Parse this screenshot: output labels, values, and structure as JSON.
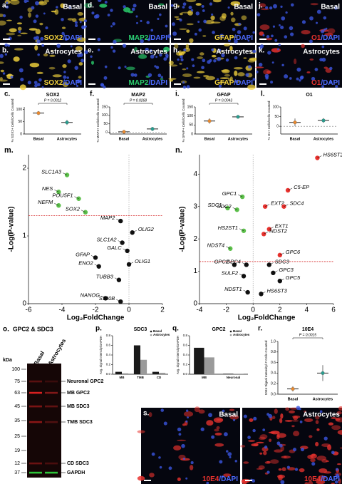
{
  "images": [
    {
      "label": "a.",
      "condition": "Basal",
      "stain": "SOX2",
      "counterstain": "/DAPI",
      "stain_color": "#f2d23c"
    },
    {
      "label": "d.",
      "condition": "Basal",
      "stain": "MAP2",
      "counterstain": "/DAPI",
      "stain_color": "#2bd16e"
    },
    {
      "label": "g.",
      "condition": "Basal",
      "stain": "GFAP",
      "counterstain": "/DAPI",
      "stain_color": "#f2d23c"
    },
    {
      "label": "j.",
      "condition": "Basal",
      "stain": "O1",
      "counterstain": "/DAPI",
      "stain_color": "#e8322e"
    },
    {
      "label": "b.",
      "condition": "Astrocytes",
      "stain": "SOX2",
      "counterstain": "/DAPI",
      "stain_color": "#f2d23c"
    },
    {
      "label": "e.",
      "condition": "Astrocytes",
      "stain": "MAP2",
      "counterstain": "/DAPI",
      "stain_color": "#2bd16e"
    },
    {
      "label": "h.",
      "condition": "Astrocytes",
      "stain": "GFAP",
      "counterstain": "/DAPI",
      "stain_color": "#f2d23c"
    },
    {
      "label": "k.",
      "condition": "Astrocytes",
      "stain": "O1",
      "counterstain": "/DAPI",
      "stain_color": "#e8322e"
    },
    {
      "label": "s.",
      "condition": "Basal",
      "stain": "10E4",
      "counterstain": "/DAPI",
      "stain_color": "#e8322e"
    },
    {
      "condition": "Astrocytes",
      "stain": "10E4",
      "counterstain": "/DAPI",
      "stain_color": "#e8322e"
    }
  ],
  "blot": {
    "label": "o.",
    "title": "GPC2 & SDC3",
    "lanes": [
      "Basal",
      "Astrocytes"
    ],
    "unit": "kDa",
    "ladder": [
      100,
      75,
      63,
      45,
      35,
      25,
      19,
      12,
      37
    ],
    "bands": [
      "Neuronal GPC2",
      "MB GPC2",
      "MB SDC3",
      "TMB SDC3",
      "CD SDC3",
      "GAPDH"
    ]
  },
  "chart_data": [
    {
      "type": "dot",
      "label": "c.",
      "title": "SOX2",
      "ylabel": "% SOX2+ Cells/Cells Counted",
      "categories": [
        "Basal",
        "Astrocytes"
      ],
      "values": [
        85,
        47
      ],
      "errors": [
        8,
        10
      ],
      "colors": [
        "#e8892f",
        "#2a9d8f"
      ],
      "ylim": [
        0,
        110
      ],
      "yticks": [
        0,
        50,
        100
      ],
      "pvalue": "P = 0.0012",
      "zero_line": false
    },
    {
      "type": "dot",
      "label": "f.",
      "title": "MAP2",
      "ylabel": "% MAP2+ Cells/Cells Counted",
      "categories": [
        "Basal",
        "Astrocytes"
      ],
      "values": [
        3,
        20
      ],
      "errors": [
        2,
        12
      ],
      "colors": [
        "#e8892f",
        "#2a9d8f"
      ],
      "ylim": [
        -10,
        150
      ],
      "yticks": [
        0,
        50,
        100,
        150
      ],
      "pvalue": "P = 0.0268",
      "zero_line": true
    },
    {
      "type": "dot",
      "label": "i.",
      "title": "GFAP",
      "ylabel": "% GFAP+ Cells/Cells Counted",
      "categories": [
        "Basal",
        "Astrocytes"
      ],
      "values": [
        72,
        95
      ],
      "errors": [
        15,
        5
      ],
      "colors": [
        "#e8892f",
        "#2a9d8f"
      ],
      "ylim": [
        0,
        150
      ],
      "yticks": [
        0,
        50,
        100,
        150
      ],
      "pvalue": "P = 0.0043",
      "zero_line": false
    },
    {
      "type": "dot",
      "label": "l.",
      "title": "O1",
      "ylabel": "% O1+ Cells/Cells Counted",
      "categories": [
        "Basal",
        "Astrocytes"
      ],
      "values": [
        20,
        30
      ],
      "errors": [
        20,
        12
      ],
      "colors": [
        "#e8892f",
        "#2a9d8f"
      ],
      "ylim": [
        -40,
        100
      ],
      "yticks": [
        0,
        50,
        100
      ],
      "zero_line": true
    },
    {
      "type": "volcano",
      "label": "m.",
      "xlabel": "Log₂FoldChange",
      "ylabel": "-Log(P-value)",
      "xlim": [
        -6,
        2
      ],
      "xticks": [
        -6,
        -4,
        -2,
        0,
        2
      ],
      "ylim": [
        0,
        2.2
      ],
      "yticks": [
        0,
        1,
        2
      ],
      "threshold": 1.3,
      "points": [
        {
          "name": "SLC1A3",
          "x": -3.7,
          "y": 1.9,
          "color": "#5cbf4a"
        },
        {
          "name": "NES",
          "x": -4.2,
          "y": 1.65,
          "color": "#5cbf4a"
        },
        {
          "name": "POU5F1",
          "x": -3.0,
          "y": 1.55,
          "color": "#5cbf4a"
        },
        {
          "name": "NEFM",
          "x": -4.2,
          "y": 1.45,
          "color": "#5cbf4a"
        },
        {
          "name": "SOX2",
          "x": -2.6,
          "y": 1.35,
          "color": "#5cbf4a"
        },
        {
          "name": "MAP2",
          "x": -0.5,
          "y": 1.22,
          "color": "#111111"
        },
        {
          "name": "OLIG2",
          "x": 0.2,
          "y": 1.05,
          "color": "#111111"
        },
        {
          "name": "SLC1A2",
          "x": -0.4,
          "y": 0.9,
          "color": "#111111"
        },
        {
          "name": "GALC",
          "x": -0.1,
          "y": 0.78,
          "color": "#111111"
        },
        {
          "name": "GFAP",
          "x": -2.0,
          "y": 0.68,
          "color": "#111111"
        },
        {
          "name": "ENO2",
          "x": -1.8,
          "y": 0.55,
          "color": "#111111"
        },
        {
          "name": "OLIG1",
          "x": 0.0,
          "y": 0.58,
          "color": "#111111"
        },
        {
          "name": "TUBB3",
          "x": -0.6,
          "y": 0.35,
          "color": "#111111"
        },
        {
          "name": "NANOG",
          "x": -1.4,
          "y": 0.08,
          "color": "#111111"
        },
        {
          "name": "S100B",
          "x": -0.5,
          "y": 0.03,
          "color": "#111111"
        }
      ]
    },
    {
      "type": "volcano",
      "label": "n.",
      "xlabel": "Log₂FoldChange",
      "ylabel": "-Log(P-value)",
      "xlim": [
        -4,
        6
      ],
      "xticks": [
        -4,
        -2,
        0,
        2,
        4,
        6
      ],
      "ylim": [
        0,
        4.6
      ],
      "yticks": [
        0,
        1,
        2,
        3,
        4
      ],
      "threshold": 1.3,
      "points": [
        {
          "name": "HS6ST2",
          "x": 4.8,
          "y": 4.5,
          "color": "#e8322e"
        },
        {
          "name": "C5-EP",
          "x": 2.6,
          "y": 3.5,
          "color": "#e8322e"
        },
        {
          "name": "GPC1",
          "x": -0.8,
          "y": 3.3,
          "color": "#5cbf4a"
        },
        {
          "name": "SDC1",
          "x": -1.9,
          "y": 2.95,
          "color": "#5cbf4a"
        },
        {
          "name": "SDC2",
          "x": -1.2,
          "y": 2.9,
          "color": "#5cbf4a"
        },
        {
          "name": "EXT2",
          "x": 0.9,
          "y": 3.0,
          "color": "#e8322e"
        },
        {
          "name": "SDC4",
          "x": 2.3,
          "y": 3.0,
          "color": "#e8322e"
        },
        {
          "name": "EXT1",
          "x": 1.2,
          "y": 2.3,
          "color": "#e8322e"
        },
        {
          "name": "HS2ST1",
          "x": -0.7,
          "y": 2.25,
          "color": "#5cbf4a"
        },
        {
          "name": "NDST2",
          "x": 0.8,
          "y": 2.15,
          "color": "#e8322e"
        },
        {
          "name": "NDST4",
          "x": -1.7,
          "y": 1.7,
          "color": "#5cbf4a"
        },
        {
          "name": "GPC6",
          "x": 2.0,
          "y": 1.5,
          "color": "#e8322e"
        },
        {
          "name": "GPC2",
          "x": -1.4,
          "y": 1.2,
          "color": "#111111"
        },
        {
          "name": "GPC4",
          "x": -0.5,
          "y": 1.2,
          "color": "#111111"
        },
        {
          "name": "SDC3",
          "x": 1.2,
          "y": 1.2,
          "color": "#111111"
        },
        {
          "name": "GPC3",
          "x": 1.5,
          "y": 0.95,
          "color": "#111111"
        },
        {
          "name": "SULF2",
          "x": -0.7,
          "y": 0.85,
          "color": "#111111"
        },
        {
          "name": "GPC5",
          "x": 2.0,
          "y": 0.7,
          "color": "#111111"
        },
        {
          "name": "NDST1",
          "x": -0.4,
          "y": 0.35,
          "color": "#111111"
        },
        {
          "name": "HS6ST3",
          "x": 0.6,
          "y": 0.3,
          "color": "#111111"
        }
      ]
    },
    {
      "type": "grouped_bar",
      "label": "p.",
      "title": "SDC3",
      "ylabel": "Avg. Signal Intensity/GAPDH",
      "categories": [
        "MB",
        "TMB",
        "CD"
      ],
      "series": [
        {
          "name": "Basal",
          "color": "#1a1a1a",
          "values": [
            0.05,
            0.6,
            0.05
          ]
        },
        {
          "name": "Astrocytes",
          "color": "#9a9a9a",
          "values": [
            0.02,
            0.3,
            0.03
          ]
        }
      ],
      "ylim": [
        0,
        0.8
      ],
      "yticks": [
        {
          "value": 0,
          "label": "0.0"
        },
        {
          "value": 0.2,
          "label": "0.2"
        },
        {
          "value": 0.4,
          "label": "0.4"
        },
        {
          "value": 0.6,
          "label": "0.6"
        },
        {
          "value": 0.8,
          "label": "0.8"
        }
      ]
    },
    {
      "type": "grouped_bar",
      "label": "q.",
      "title": "GPC2",
      "ylabel": "Avg. Signal Intensity/GAPDH",
      "categories": [
        "MB",
        "Neuronal"
      ],
      "series": [
        {
          "name": "Basal",
          "color": "#1a1a1a",
          "values": [
            0.55,
            0.01
          ]
        },
        {
          "name": "Astrocytes",
          "color": "#9a9a9a",
          "values": [
            0.35,
            0.01
          ]
        }
      ],
      "ylim": [
        0,
        0.8
      ],
      "yticks": [
        {
          "value": 0,
          "label": "0.0"
        },
        {
          "value": 0.2,
          "label": "0.2"
        },
        {
          "value": 0.4,
          "label": "0.4"
        },
        {
          "value": 0.6,
          "label": "0.6"
        },
        {
          "value": 0.8,
          "label": "0.8"
        }
      ]
    },
    {
      "type": "dot",
      "label": "r.",
      "title": "10E4",
      "ylabel": "10E4 Signal Intensity/ # Cells Counted",
      "categories": [
        "Basal",
        "Astrocytes"
      ],
      "values": [
        0.1,
        0.4
      ],
      "errors": [
        0.05,
        0.15
      ],
      "colors": [
        "#e8892f",
        "#2a9d8f"
      ],
      "ylim": [
        0,
        1.0
      ],
      "yticks": [
        {
          "value": 0,
          "label": "0.0"
        },
        {
          "value": 0.2,
          "label": "0.2"
        },
        {
          "value": 0.4,
          "label": "0.4"
        },
        {
          "value": 0.6,
          "label": "0.6"
        },
        {
          "value": 0.8,
          "label": "0.8"
        },
        {
          "value": 1.0,
          "label": "1.0"
        }
      ],
      "pvalue": "P = 0.0015",
      "zero_line": false
    }
  ]
}
